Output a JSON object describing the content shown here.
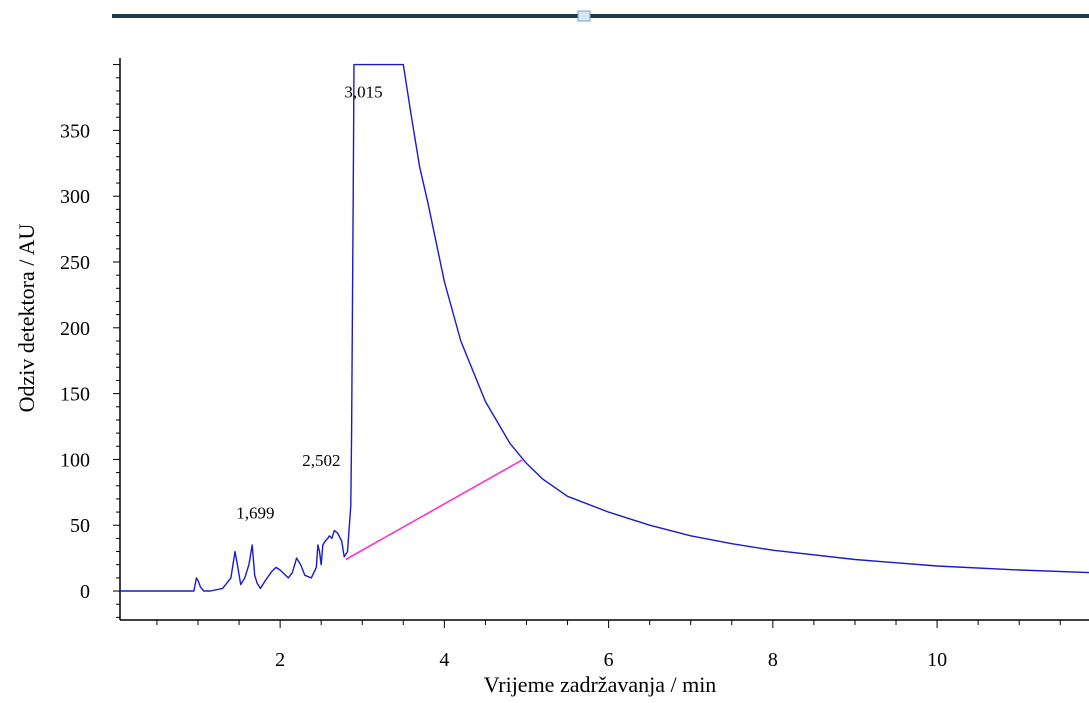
{
  "chart_data": {
    "type": "line",
    "xlabel": "Vrijeme zadržavanja / min",
    "ylabel": "Odziv detektora / AU",
    "xlim": [
      0.05,
      11.85
    ],
    "ylim": [
      -22,
      405
    ],
    "xticks": [
      2,
      4,
      6,
      8,
      10
    ],
    "yticks": [
      0,
      50,
      100,
      150,
      200,
      250,
      300,
      350
    ],
    "xtick_labels": [
      "2",
      "4",
      "6",
      "8",
      "10"
    ],
    "ytick_labels": [
      "0",
      "50",
      "100",
      "150",
      "200",
      "250",
      "300",
      "350"
    ],
    "peak_labels": [
      {
        "text": "1,699",
        "x": 1.699,
        "y": 55
      },
      {
        "text": "2,502",
        "x": 2.502,
        "y": 95
      },
      {
        "text": "3,015",
        "x": 3.015,
        "y": 375
      }
    ],
    "series": [
      {
        "color": "#1a1acc",
        "x": [
          0.05,
          0.95,
          0.98,
          1.0,
          1.03,
          1.07,
          1.15,
          1.3,
          1.4,
          1.45,
          1.48,
          1.52,
          1.57,
          1.62,
          1.66,
          1.69,
          1.72,
          1.76,
          1.82,
          1.9,
          1.95,
          2.0,
          2.1,
          2.15,
          2.2,
          2.25,
          2.3,
          2.38,
          2.44,
          2.46,
          2.48,
          2.5,
          2.52,
          2.55,
          2.58,
          2.6,
          2.63,
          2.66,
          2.7,
          2.75,
          2.78,
          2.82,
          2.86,
          2.87,
          2.88,
          2.89,
          2.9,
          2.905,
          3.5,
          3.6,
          3.7,
          3.8,
          4.0,
          4.2,
          4.5,
          4.8,
          5.0,
          5.2,
          5.5,
          6.0,
          6.5,
          7.0,
          7.5,
          8.0,
          9.0,
          10.0,
          11.0,
          11.85
        ],
        "y": [
          0,
          0,
          10,
          8,
          3,
          0,
          0,
          2,
          10,
          30,
          20,
          5,
          10,
          20,
          35,
          12,
          6,
          2,
          8,
          15,
          18,
          16,
          10,
          14,
          25,
          20,
          12,
          10,
          18,
          35,
          30,
          20,
          35,
          38,
          40,
          42,
          40,
          46,
          44,
          38,
          26,
          30,
          65,
          120,
          210,
          300,
          400,
          400,
          400,
          360,
          322,
          295,
          235,
          190,
          144,
          112,
          97,
          85,
          72,
          60,
          50,
          42,
          36,
          31,
          24,
          19,
          16,
          14
        ]
      },
      {
        "color": "#ff33cc",
        "x": [
          2.8,
          4.96
        ],
        "y": [
          24,
          100
        ]
      }
    ]
  }
}
